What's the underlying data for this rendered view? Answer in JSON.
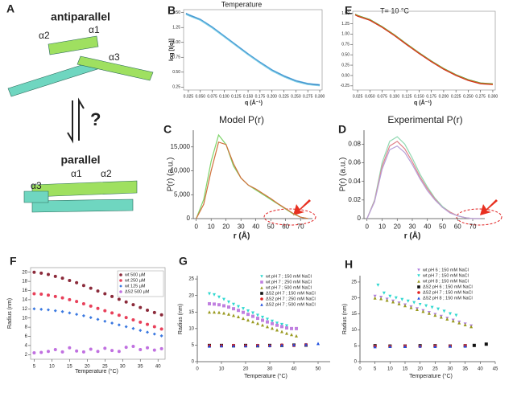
{
  "panel_a": {
    "label": "A",
    "top_title": "antiparallel",
    "bottom_title": "parallel",
    "question": "?",
    "top_helices": [
      "α2",
      "α1",
      "α3"
    ],
    "bottom_helices": [
      "α1",
      "α2",
      "α3"
    ]
  },
  "chart_data": [
    {
      "label": "B",
      "type": "line",
      "title": "Temperature",
      "xlabel": "q (Å⁻¹)",
      "ylabel": "log [I(q)]",
      "frame": true,
      "x": [
        0.02,
        0.025,
        0.05,
        0.075,
        0.1,
        0.125,
        0.15,
        0.175,
        0.2,
        0.225,
        0.25,
        0.275,
        0.3
      ],
      "series": [
        {
          "color": "#1f4e9a",
          "values": [
            1.48,
            1.46,
            1.38,
            1.25,
            1.1,
            0.95,
            0.8,
            0.66,
            0.53,
            0.43,
            0.35,
            0.3,
            0.28
          ]
        },
        {
          "color": "#4a9fd8",
          "values": [
            1.49,
            1.47,
            1.39,
            1.26,
            1.11,
            0.96,
            0.81,
            0.67,
            0.54,
            0.44,
            0.36,
            0.31,
            0.29
          ]
        },
        {
          "color": "#7fd0e8",
          "values": [
            1.47,
            1.45,
            1.37,
            1.24,
            1.09,
            0.94,
            0.79,
            0.65,
            0.52,
            0.42,
            0.34,
            0.29,
            0.27
          ]
        }
      ],
      "xlim": [
        0.015,
        0.305
      ],
      "ylim": [
        0.2,
        1.55
      ],
      "xticks": [
        0.025,
        {
          "value": 0.05,
          "label": "0.050"
        },
        0.075,
        {
          "value": 0.1,
          "label": "0.100"
        },
        0.125,
        {
          "value": 0.15,
          "label": "0.150"
        },
        0.175,
        {
          "value": 0.2,
          "label": "0.200"
        },
        0.225,
        {
          "value": 0.25,
          "label": "0.250"
        },
        0.275,
        {
          "value": 0.3,
          "label": "0.300"
        }
      ],
      "yticks": [
        0.25,
        {
          "value": 0.5,
          "label": "0.50"
        },
        0.75,
        {
          "value": 1,
          "label": "1.00"
        },
        1.25,
        {
          "value": 1.5,
          "label": "1.50"
        }
      ]
    },
    {
      "label": "C",
      "type": "line",
      "title": "Model P(r)",
      "xlabel": "r (Å)",
      "ylabel": "P(r) (a.u.)",
      "frame": false,
      "x": [
        0,
        5,
        10,
        15,
        20,
        25,
        30,
        35,
        40,
        45,
        50,
        55,
        60,
        65,
        70,
        75
      ],
      "series": [
        {
          "color": "#7fd46a",
          "values": [
            0,
            4000,
            12000,
            17500,
            15500,
            11000,
            8500,
            7000,
            6000,
            5000,
            4000,
            3000,
            2000,
            1000,
            300,
            0
          ]
        },
        {
          "color": "#d0703a",
          "values": [
            0,
            3000,
            10000,
            16000,
            15500,
            11500,
            8500,
            7000,
            6200,
            5200,
            4200,
            3100,
            2100,
            1100,
            300,
            0
          ]
        }
      ],
      "xlim": [
        -2,
        78
      ],
      "ylim": [
        0,
        18500
      ],
      "xticks": [
        0,
        10,
        20,
        30,
        40,
        50,
        60,
        70
      ],
      "yticks": [
        0,
        {
          "value": 5000,
          "label": "5,000"
        },
        {
          "value": 10000,
          "label": "10,000"
        },
        {
          "value": 15000,
          "label": "15,000"
        }
      ]
    },
    {
      "label": "D",
      "type": "line",
      "title": "Experimental P(r)",
      "xlabel": "r (Å)",
      "ylabel": "P(r) (a.u.)",
      "frame": false,
      "x": [
        0,
        5,
        10,
        15,
        20,
        25,
        30,
        35,
        40,
        45,
        50,
        55,
        60,
        65,
        70,
        75
      ],
      "series": [
        {
          "color": "#8fd8b0",
          "values": [
            0,
            0.02,
            0.06,
            0.083,
            0.088,
            0.08,
            0.065,
            0.048,
            0.034,
            0.022,
            0.013,
            0.007,
            0.003,
            0.001,
            0,
            0
          ]
        },
        {
          "color": "#e0848c",
          "values": [
            0,
            0.019,
            0.056,
            0.078,
            0.083,
            0.075,
            0.061,
            0.045,
            0.032,
            0.021,
            0.012,
            0.007,
            0.003,
            0.001,
            0,
            0
          ]
        },
        {
          "color": "#b7a0d8",
          "values": [
            0,
            0.018,
            0.053,
            0.074,
            0.078,
            0.071,
            0.058,
            0.043,
            0.03,
            0.02,
            0.012,
            0.006,
            0.003,
            0.001,
            0,
            0
          ]
        }
      ],
      "xlim": [
        -2,
        78
      ],
      "ylim": [
        0,
        0.095
      ],
      "xticks": [
        0,
        10,
        20,
        30,
        40,
        50,
        60,
        70
      ],
      "yticks": [
        0,
        0.02,
        0.04,
        0.06,
        0.08
      ]
    },
    {
      "label": "E",
      "type": "line",
      "title": "T= 10 °C",
      "xlabel": "q (Å⁻¹)",
      "frame": true,
      "x": [
        0.02,
        0.025,
        0.05,
        0.075,
        0.1,
        0.125,
        0.15,
        0.175,
        0.2,
        0.225,
        0.25,
        0.275,
        0.3
      ],
      "series": [
        {
          "color": "#3a8a3a",
          "values": [
            1.48,
            1.45,
            1.35,
            1.18,
            0.98,
            0.76,
            0.55,
            0.35,
            0.17,
            0.02,
            -0.1,
            -0.18,
            -0.2
          ]
        },
        {
          "color": "#e0a020",
          "values": [
            1.47,
            1.44,
            1.34,
            1.17,
            0.97,
            0.75,
            0.54,
            0.34,
            0.16,
            0.01,
            -0.11,
            -0.19,
            -0.21
          ]
        },
        {
          "color": "#d03020",
          "values": [
            1.46,
            1.43,
            1.33,
            1.16,
            0.96,
            0.74,
            0.53,
            0.33,
            0.15,
            0,
            -0.12,
            -0.2,
            -0.22
          ]
        }
      ],
      "xlim": [
        0.015,
        0.305
      ],
      "ylim": [
        -0.35,
        1.55
      ],
      "xticks": [
        0.025,
        {
          "value": 0.05,
          "label": "0.050"
        },
        0.075,
        {
          "value": 0.1,
          "label": "0.100"
        },
        0.125,
        {
          "value": 0.15,
          "label": "0.150"
        },
        0.175,
        {
          "value": 0.2,
          "label": "0.200"
        },
        0.225,
        {
          "value": 0.25,
          "label": "0.250"
        },
        0.275,
        {
          "value": 0.3,
          "label": "0.300"
        }
      ],
      "yticks": [
        -0.25,
        {
          "value": 0,
          "label": "0.00"
        },
        0.25,
        {
          "value": 0.5,
          "label": "0.50"
        },
        0.75,
        {
          "value": 1,
          "label": "1.00"
        },
        1.25,
        {
          "value": 1.5,
          "label": "1.50"
        }
      ]
    },
    {
      "label": "F",
      "type": "scatter",
      "xlabel": "Temperature (°C)",
      "ylabel": "Radius (nm)",
      "frame": true,
      "legend": "upper right",
      "x": [
        5,
        7,
        9,
        11,
        13,
        15,
        17,
        19,
        21,
        23,
        25,
        27,
        29,
        31,
        33,
        35,
        37,
        39,
        41
      ],
      "series": [
        {
          "name": "wt 500 µM",
          "color": "#8b2a3a",
          "marker": "circle",
          "values": [
            20,
            19.8,
            19.5,
            19.1,
            18.7,
            18.2,
            17.7,
            17.1,
            16.5,
            15.9,
            15.3,
            14.7,
            14.1,
            13.5,
            12.9,
            12.3,
            11.7,
            11.2,
            10.7
          ]
        },
        {
          "name": "wt 250 µM",
          "color": "#e8405a",
          "marker": "circle",
          "values": [
            15.3,
            15.2,
            15,
            14.7,
            14.4,
            14,
            13.6,
            13.1,
            12.6,
            12.1,
            11.6,
            11.1,
            10.6,
            10.1,
            9.6,
            9.1,
            8.6,
            8.1,
            7.6
          ]
        },
        {
          "name": "wt 125 µM",
          "color": "#3a78e0",
          "marker": "diamond",
          "values": [
            12,
            11.9,
            11.8,
            11.6,
            11.4,
            11.1,
            10.8,
            10.5,
            10.1,
            9.7,
            9.3,
            8.9,
            8.5,
            8.1,
            7.7,
            7.3,
            6.9,
            6.5,
            6.1
          ]
        },
        {
          "name": "ΔS2 500 µM",
          "color": "#c070e0",
          "marker": "circle",
          "values": [
            2.4,
            2.5,
            2.7,
            3.1,
            2.6,
            3.5,
            2.8,
            2.6,
            3.2,
            2.7,
            3.4,
            2.9,
            2.7,
            3.6,
            3.8,
            3.1,
            3.5,
            3,
            3.3
          ]
        }
      ],
      "xlim": [
        4,
        42
      ],
      "ylim": [
        1,
        21
      ],
      "xticks": [
        5,
        10,
        15,
        20,
        25,
        30,
        35,
        40
      ],
      "yticks": [
        2,
        4,
        6,
        8,
        10,
        12,
        14,
        16,
        18,
        20
      ]
    },
    {
      "label": "G",
      "type": "scatter",
      "xlabel": "Temperature (°C)",
      "ylabel": "Radius (nm)",
      "frame": false,
      "legend": "upper right",
      "series": [
        {
          "name": "wt pH 7 ; 150 mM NaCl",
          "color": "#30d8d0",
          "marker": "triangle-down",
          "x": [
            5,
            7,
            9,
            11,
            13,
            15,
            17,
            19,
            21,
            23,
            25,
            27,
            29,
            31,
            33,
            35,
            37
          ],
          "values": [
            20.5,
            20.2,
            19.5,
            18.8,
            18,
            17.3,
            16.6,
            16,
            15.3,
            14.7,
            14,
            13.4,
            12.8,
            12.2,
            11.6,
            11.2,
            10.8
          ]
        },
        {
          "name": "wt pH 7 ; 250 mM NaCl",
          "color": "#c080e0",
          "marker": "square",
          "x": [
            5,
            7,
            9,
            11,
            13,
            15,
            17,
            19,
            21,
            23,
            25,
            27,
            29,
            31,
            33,
            35,
            37,
            39,
            41
          ],
          "values": [
            17.5,
            17.4,
            17.2,
            16.9,
            16.5,
            16,
            15.5,
            14.9,
            14.3,
            13.7,
            13.1,
            12.5,
            12,
            11.5,
            11,
            10.6,
            10.2,
            10,
            10
          ]
        },
        {
          "name": "wt pH 7 ; 500 mM NaCl",
          "color": "#9a9a20",
          "marker": "triangle",
          "x": [
            5,
            7,
            9,
            11,
            13,
            15,
            17,
            19,
            21,
            23,
            25,
            27,
            29,
            31,
            33,
            35,
            37,
            39,
            41
          ],
          "values": [
            15,
            15,
            14.9,
            14.7,
            14.4,
            14,
            13.6,
            13.1,
            12.6,
            12.1,
            11.6,
            11.1,
            10.6,
            10.1,
            9.6,
            9.1,
            8.6,
            8.2,
            7.8
          ]
        },
        {
          "name": "ΔS2 pH 7 ; 150 mM NaCl",
          "color": "#111111",
          "marker": "square",
          "x": [
            5,
            10,
            15,
            20,
            25,
            30,
            35,
            40,
            45
          ],
          "values": [
            4.9,
            4.9,
            4.8,
            4.9,
            4.8,
            4.9,
            4.9,
            5,
            5
          ]
        },
        {
          "name": "ΔS2 pH 7 ; 250 mM NaCl",
          "color": "#e02020",
          "marker": "circle",
          "x": [
            5,
            10,
            15,
            20,
            25,
            30,
            35,
            40,
            45
          ],
          "values": [
            4.8,
            4.8,
            4.9,
            4.8,
            4.9,
            4.8,
            5,
            4.9,
            5.1
          ]
        },
        {
          "name": "ΔS2 pH 7 ; 500 mM NaCl",
          "color": "#2050e0",
          "marker": "triangle",
          "x": [
            5,
            10,
            15,
            20,
            25,
            30,
            35,
            40,
            45,
            50
          ],
          "values": [
            4.7,
            4.8,
            4.8,
            4.8,
            4.9,
            4.9,
            5,
            5.1,
            5.2,
            5.5
          ]
        }
      ],
      "xlim": [
        0,
        55
      ],
      "ylim": [
        0,
        26
      ],
      "xticks": [
        0,
        10,
        20,
        30,
        40,
        50
      ],
      "yticks": [
        0,
        5,
        10,
        15,
        20,
        25
      ]
    },
    {
      "label": "H",
      "type": "scatter",
      "xlabel": "Temperature (°C)",
      "ylabel": "Radius (nm)",
      "frame": false,
      "legend": "upper right",
      "series": [
        {
          "name": "wt pH 6 ; 150 mM NaCl",
          "color": "#b080e0",
          "marker": "triangle-down",
          "x": [
            5,
            7,
            9,
            11,
            13,
            15,
            17,
            19,
            21,
            23,
            25,
            27,
            29,
            31,
            33,
            35,
            37
          ],
          "values": [
            20.5,
            20.2,
            19.6,
            19,
            18.4,
            17.8,
            17.2,
            16.6,
            16,
            15.4,
            14.8,
            14.2,
            13.6,
            13,
            12.4,
            11.8,
            11.2
          ]
        },
        {
          "name": "wt pH 7 ; 150 mM NaCl",
          "color": "#30d8d0",
          "marker": "triangle-down",
          "x": [
            6,
            8,
            10,
            12,
            14,
            16,
            18,
            20,
            22,
            24,
            26,
            28,
            30,
            32
          ],
          "values": [
            24,
            21.5,
            20.5,
            20,
            19.5,
            19,
            18.5,
            18,
            17.5,
            17,
            16.5,
            15.8,
            15,
            14.5
          ]
        },
        {
          "name": "wt pH 8 ; 150 mM NaCl",
          "color": "#9a9a20",
          "marker": "triangle",
          "x": [
            5,
            7,
            9,
            11,
            13,
            15,
            17,
            19,
            21,
            23,
            25,
            27,
            29,
            31,
            33,
            35,
            37
          ],
          "values": [
            20,
            19.8,
            19.3,
            18.8,
            18.2,
            17.6,
            17,
            16.4,
            15.8,
            15.2,
            14.6,
            14,
            13.4,
            12.8,
            12.2,
            11.6,
            11
          ]
        },
        {
          "name": "ΔS2 pH 6 ; 150 mM NaCl",
          "color": "#111111",
          "marker": "square",
          "x": [
            5,
            10,
            15,
            20,
            25,
            30,
            35,
            38,
            42
          ],
          "values": [
            5,
            4.9,
            4.9,
            5,
            5,
            4.9,
            5,
            5.1,
            5.5
          ]
        },
        {
          "name": "ΔS2 pH 7 ; 150 mM NaCl",
          "color": "#e02020",
          "marker": "circle",
          "x": [
            5,
            10,
            15,
            20,
            25,
            30,
            35
          ],
          "values": [
            4.8,
            4.8,
            4.9,
            4.8,
            4.9,
            4.9,
            5
          ]
        },
        {
          "name": "ΔS2 pH 8 ; 150 mM NaCl",
          "color": "#2050e0",
          "marker": "triangle",
          "x": [
            5,
            10,
            15,
            20,
            25,
            30,
            35
          ],
          "values": [
            4.7,
            4.8,
            4.8,
            4.9,
            4.8,
            4.9,
            4.9
          ]
        }
      ],
      "xlim": [
        0,
        45
      ],
      "ylim": [
        0,
        27
      ],
      "xticks": [
        0,
        5,
        10,
        15,
        20,
        25,
        30,
        35,
        40,
        45
      ],
      "yticks": [
        0,
        5,
        10,
        15,
        20,
        25
      ]
    }
  ]
}
